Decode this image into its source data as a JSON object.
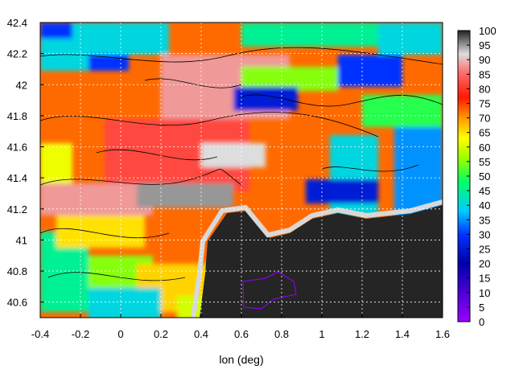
{
  "chart_data": {
    "type": "heatmap",
    "title": "",
    "xlabel": "lon (deg)",
    "ylabel": "",
    "xlim": [
      -0.4,
      1.6
    ],
    "ylim": [
      40.5,
      42.4
    ],
    "x_ticks": [
      "-0.4",
      "-0.2",
      "0",
      "0.2",
      "0.4",
      "0.6",
      "0.8",
      "1",
      "1.2",
      "1.4",
      "1.6"
    ],
    "y_ticks": [
      "40.6",
      "40.8",
      "41",
      "41.2",
      "41.4",
      "41.6",
      "41.8",
      "42",
      "42.2",
      "42.4"
    ],
    "colorbar": {
      "range": [
        0,
        100
      ],
      "ticks": [
        "0",
        "5",
        "10",
        "15",
        "20",
        "25",
        "30",
        "35",
        "40",
        "45",
        "50",
        "55",
        "60",
        "65",
        "70",
        "75",
        "80",
        "85",
        "90",
        "95",
        "100"
      ],
      "stops": [
        {
          "value": 0,
          "color": "#9900ff"
        },
        {
          "value": 20,
          "color": "#0000aa"
        },
        {
          "value": 30,
          "color": "#0033ff"
        },
        {
          "value": 38,
          "color": "#00ccff"
        },
        {
          "value": 48,
          "color": "#00ff66"
        },
        {
          "value": 56,
          "color": "#99ff00"
        },
        {
          "value": 63,
          "color": "#ffff00"
        },
        {
          "value": 70,
          "color": "#ff9900"
        },
        {
          "value": 77,
          "color": "#ff1a00"
        },
        {
          "value": 85,
          "color": "#ff6666"
        },
        {
          "value": 92,
          "color": "#dddddd"
        },
        {
          "value": 100,
          "color": "#222222"
        }
      ]
    },
    "grid": "dashed",
    "sea_value": 100
  }
}
